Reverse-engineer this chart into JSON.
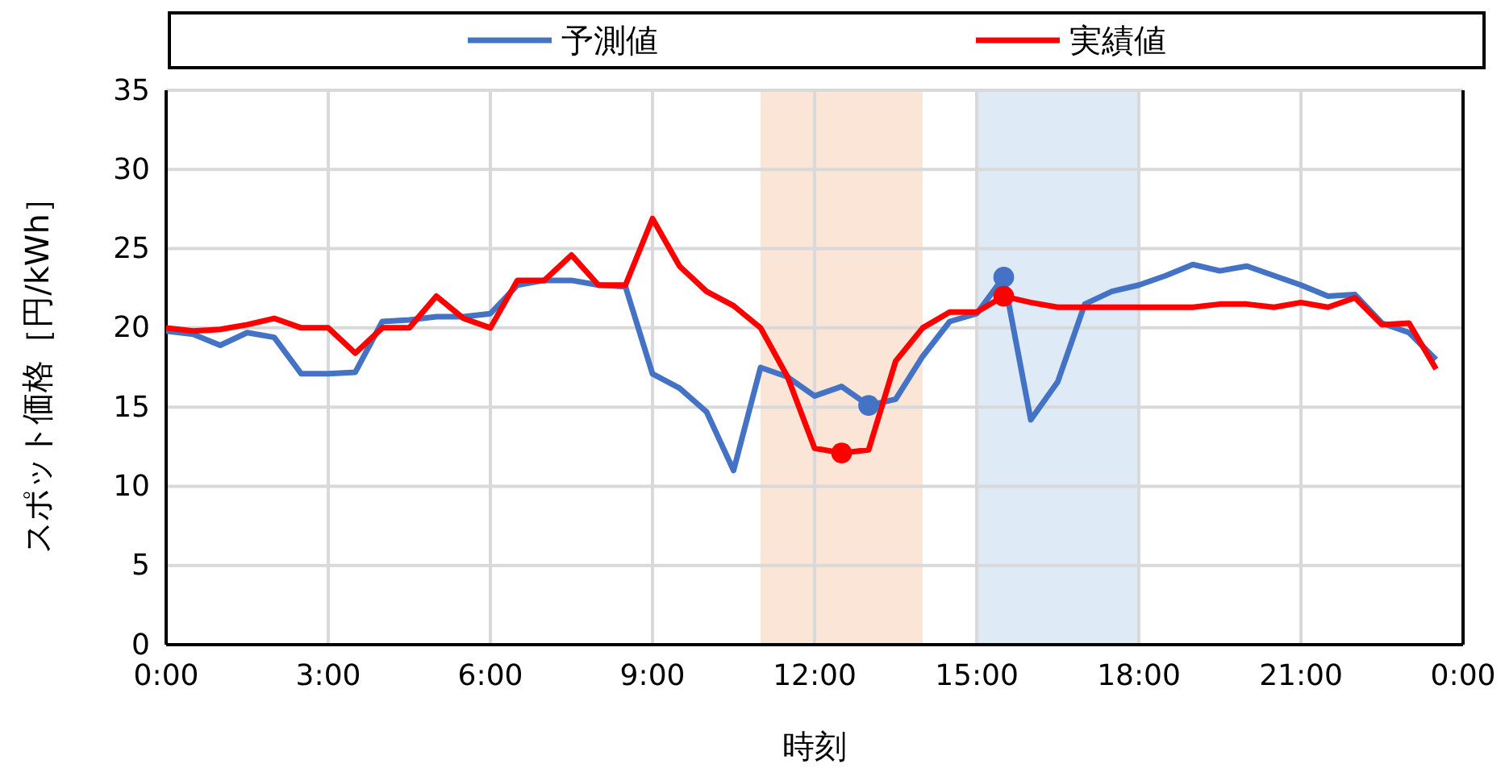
{
  "chart_data": {
    "type": "line",
    "xlabel": "時刻",
    "ylabel": "スポット価格［円/kWh］",
    "x": [
      0,
      0.5,
      1,
      1.5,
      2,
      2.5,
      3,
      3.5,
      4,
      4.5,
      5,
      5.5,
      6,
      6.5,
      7,
      7.5,
      8,
      8.5,
      9,
      9.5,
      10,
      10.5,
      11,
      11.5,
      12,
      12.5,
      13,
      13.5,
      14,
      14.5,
      15,
      15.5,
      16,
      16.5,
      17,
      17.5,
      18,
      18.5,
      19,
      19.5,
      20,
      20.5,
      21,
      21.5,
      22,
      22.5,
      23,
      23.5
    ],
    "series": [
      {
        "name": "予測値",
        "color": "#4472c4",
        "values": [
          19.8,
          19.6,
          18.9,
          19.7,
          19.4,
          17.1,
          17.1,
          17.2,
          20.4,
          20.5,
          20.7,
          20.7,
          20.9,
          22.7,
          23.0,
          23.0,
          22.7,
          22.6,
          17.1,
          16.2,
          14.7,
          11.0,
          17.5,
          16.9,
          15.7,
          16.3,
          15.1,
          15.5,
          18.2,
          20.4,
          20.9,
          23.2,
          14.2,
          16.6,
          21.5,
          22.3,
          22.7,
          23.3,
          24.0,
          23.6,
          23.9,
          23.3,
          22.7,
          22.0,
          22.1,
          20.3,
          19.7,
          18.0
        ]
      },
      {
        "name": "実績値",
        "color": "#ff0000",
        "values": [
          20.0,
          19.8,
          19.9,
          20.2,
          20.6,
          20.0,
          20.0,
          18.4,
          20.0,
          20.0,
          22.0,
          20.6,
          20.0,
          23.0,
          23.0,
          24.6,
          22.7,
          22.7,
          26.9,
          23.9,
          22.3,
          21.4,
          20.0,
          16.9,
          12.4,
          12.1,
          12.3,
          17.9,
          20.0,
          21.0,
          21.0,
          22.0,
          21.6,
          21.3,
          21.3,
          21.3,
          21.3,
          21.3,
          21.3,
          21.5,
          21.5,
          21.3,
          21.6,
          21.3,
          21.9,
          20.2,
          20.3,
          17.4
        ]
      },
      {
        "type": "scatter",
        "color": "#4472c4",
        "x": [
          13,
          15.5
        ],
        "values": [
          15.1,
          23.2
        ],
        "marker": "circle"
      },
      {
        "type": "scatter",
        "color": "#ff0000",
        "x": [
          12.5,
          15.5
        ],
        "values": [
          12.1,
          22.0
        ],
        "marker": "circle"
      }
    ],
    "xlim": [
      0,
      24
    ],
    "xticks": [
      {
        "value": 0,
        "label": "0:00"
      },
      {
        "value": 3,
        "label": "3:00"
      },
      {
        "value": 6,
        "label": "6:00"
      },
      {
        "value": 9,
        "label": "9:00"
      },
      {
        "value": 12,
        "label": "12:00"
      },
      {
        "value": 15,
        "label": "15:00"
      },
      {
        "value": 18,
        "label": "18:00"
      },
      {
        "value": 21,
        "label": "21:00"
      },
      {
        "value": 24,
        "label": "0:00"
      }
    ],
    "ylim": [
      0,
      35
    ],
    "yticks": [
      0,
      5,
      10,
      15,
      20,
      25,
      30,
      35
    ],
    "bands": [
      {
        "axis": "x",
        "from": 11,
        "to": 14,
        "color": "#fbe5d6"
      },
      {
        "axis": "x",
        "from": 15,
        "to": 18,
        "color": "#deebf7"
      }
    ],
    "grid": true,
    "legend": "top",
    "marker": "none",
    "line_style": "solid"
  }
}
